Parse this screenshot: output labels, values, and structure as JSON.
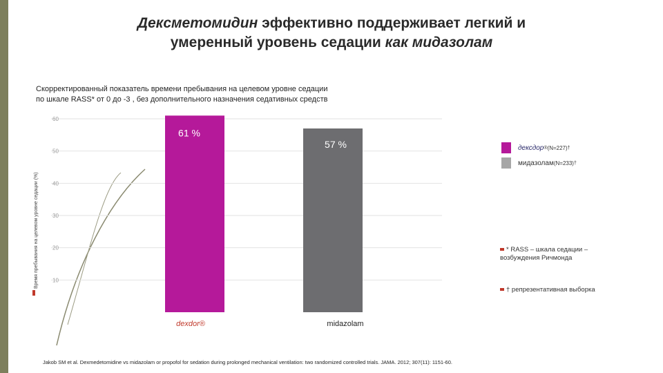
{
  "title": {
    "line1_italic": "Дексметомидин",
    "line1_rest": " эффективно поддерживает легкий и",
    "line2_rest": "умеренный уровень седации ",
    "line2_italic": "как мидазолам"
  },
  "subtitle": {
    "line1": "Скорректированный показатель времени пребывания на целевом уровне седации",
    "line2": "по шкале RASS* от 0 до -3 , без дополнительного назначения седативных средств"
  },
  "legend": [
    {
      "name": "дексдор",
      "sup": "®",
      "suffix": " (N=227)",
      "suffix_sup": "†",
      "color": "#b5199a"
    },
    {
      "name": "мидазолам",
      "sup": "",
      "suffix": " (N=233)",
      "suffix_sup": "†",
      "color": "#a6a6a6"
    }
  ],
  "notes": [
    {
      "text": "* RASS – шкала седации – возбуждения Ричмонда"
    },
    {
      "text": "† репрезентативная выборка"
    }
  ],
  "citation": "Jakob SM et al. Dexmedetomidine vs midazolam or propofol for sedation during prolonged mechanical ventilation: two randomized controlled trials. JAMA. 2012; 307(11): 1151-60.",
  "chart_data": {
    "type": "bar",
    "title": "Скорректированный показатель времени пребывания на целевом уровне седации по шкале RASS* от 0 до -3 , без дополнительного назначения седативных средств",
    "ylabel": "Время пребывания на целевом уровне седации (%)",
    "xlabel": "",
    "categories": [
      "dexdor®",
      "midazolam"
    ],
    "values": [
      61,
      57
    ],
    "value_labels": [
      "61 %",
      "57 %"
    ],
    "colors": [
      "#b5199a",
      "#6d6d70"
    ],
    "yticks": [
      "60",
      "50",
      "40",
      "30",
      "20",
      "10"
    ],
    "ylim": [
      0,
      60
    ],
    "grid": true
  }
}
